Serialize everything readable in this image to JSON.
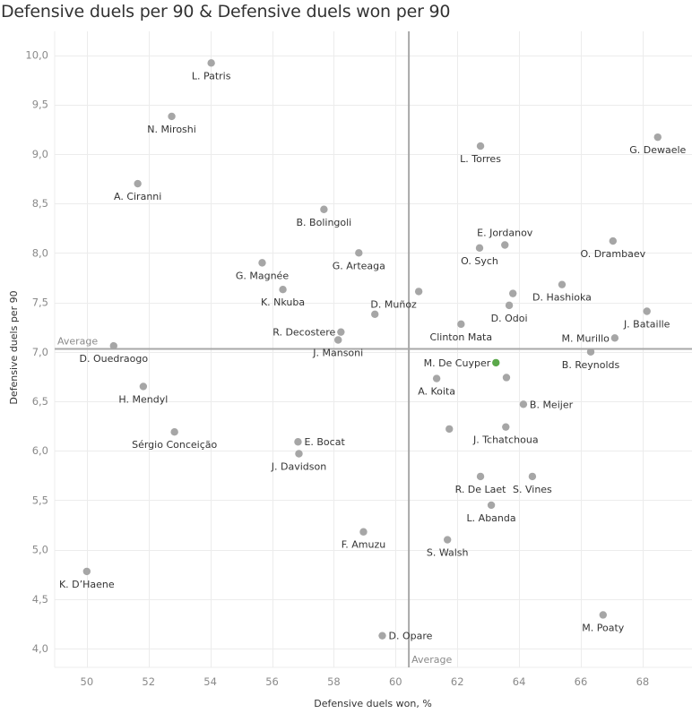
{
  "chart_data": {
    "type": "scatter",
    "title": "Defensive duels per 90 & Defensive duels won per 90",
    "xlabel": "Defensive duels won, %",
    "ylabel": "Defensive duels per 90",
    "xlim": [
      48.96,
      69.6
    ],
    "ylim": [
      3.81,
      10.24
    ],
    "xticks": [
      50,
      52,
      54,
      56,
      58,
      60,
      62,
      64,
      66,
      68
    ],
    "xtick_labels": [
      "50",
      "52",
      "54",
      "56",
      "58",
      "60",
      "62",
      "64",
      "66",
      "68"
    ],
    "yticks": [
      4.0,
      4.5,
      5.0,
      5.5,
      6.0,
      6.5,
      7.0,
      7.5,
      8.0,
      8.5,
      9.0,
      9.5,
      10.0
    ],
    "ytick_labels": [
      "4,0",
      "4,5",
      "5,0",
      "5,5",
      "6,0",
      "6,5",
      "7,0",
      "7,5",
      "8,0",
      "8,5",
      "9,0",
      "9,5",
      "10,0"
    ],
    "grid": true,
    "reference_lines": {
      "x_average": 60.43,
      "y_average": 7.03,
      "x_average_label": "Average",
      "y_average_label": "Average"
    },
    "colors": {
      "default_point": "#a6a6a6",
      "highlight_point": "#5ba84a",
      "reference_line": "#a8a8a8",
      "grid": "#ececec"
    },
    "points": [
      {
        "name": "L. Patris",
        "x": 54.03,
        "y": 9.92,
        "label_pos": "below"
      },
      {
        "name": "N. Miroshi",
        "x": 52.75,
        "y": 9.38,
        "label_pos": "below"
      },
      {
        "name": "A. Ciranni",
        "x": 51.65,
        "y": 8.7,
        "label_pos": "below"
      },
      {
        "name": "B. Bolingoli",
        "x": 57.68,
        "y": 8.44,
        "label_pos": "below"
      },
      {
        "name": "G. Arteaga",
        "x": 58.81,
        "y": 8.0,
        "label_pos": "below"
      },
      {
        "name": "G. Magnée",
        "x": 55.68,
        "y": 7.9,
        "label_pos": "below"
      },
      {
        "name": "K. Nkuba",
        "x": 56.35,
        "y": 7.63,
        "label_pos": "below"
      },
      {
        "name": "",
        "x": 59.33,
        "y": 7.38,
        "label_pos": "none"
      },
      {
        "name": "D. Muñoz",
        "x": 60.75,
        "y": 7.61,
        "label_pos": "below-left"
      },
      {
        "name": "R. Decostere",
        "x": 58.23,
        "y": 7.2,
        "label_pos": "left"
      },
      {
        "name": "J. Mansoni",
        "x": 58.14,
        "y": 7.12,
        "label_pos": "below"
      },
      {
        "name": "D. Ouedraogo",
        "x": 50.87,
        "y": 7.06,
        "label_pos": "below"
      },
      {
        "name": "H. Mendyl",
        "x": 51.83,
        "y": 6.65,
        "label_pos": "below"
      },
      {
        "name": "Sérgio Conceição",
        "x": 52.84,
        "y": 6.19,
        "label_pos": "below"
      },
      {
        "name": "E. Bocat",
        "x": 56.84,
        "y": 6.09,
        "label_pos": "right"
      },
      {
        "name": "J. Davidson",
        "x": 56.87,
        "y": 5.97,
        "label_pos": "below"
      },
      {
        "name": "F. Amuzu",
        "x": 58.96,
        "y": 5.18,
        "label_pos": "below"
      },
      {
        "name": "K. D’Haene",
        "x": 50.0,
        "y": 4.78,
        "label_pos": "below"
      },
      {
        "name": "D. Opare",
        "x": 59.57,
        "y": 4.13,
        "label_pos": "right"
      },
      {
        "name": "L. Torres",
        "x": 62.75,
        "y": 9.08,
        "label_pos": "below"
      },
      {
        "name": "G. Dewaele",
        "x": 68.49,
        "y": 9.17,
        "label_pos": "below"
      },
      {
        "name": "E. Jordanov",
        "x": 63.54,
        "y": 8.08,
        "label_pos": "above"
      },
      {
        "name": "O. Sych",
        "x": 62.72,
        "y": 8.05,
        "label_pos": "below"
      },
      {
        "name": "O. Drambaev",
        "x": 67.04,
        "y": 8.12,
        "label_pos": "below"
      },
      {
        "name": "D. Hashioka",
        "x": 65.39,
        "y": 7.68,
        "label_pos": "below"
      },
      {
        "name": "",
        "x": 63.8,
        "y": 7.59,
        "label_pos": "none"
      },
      {
        "name": "D. Odoi",
        "x": 63.68,
        "y": 7.47,
        "label_pos": "below"
      },
      {
        "name": "Clinton Mata",
        "x": 62.12,
        "y": 7.28,
        "label_pos": "below"
      },
      {
        "name": "J. Bataille",
        "x": 68.14,
        "y": 7.41,
        "label_pos": "below"
      },
      {
        "name": "M. Murillo",
        "x": 67.1,
        "y": 7.14,
        "label_pos": "left"
      },
      {
        "name": "B. Reynolds",
        "x": 66.32,
        "y": 7.0,
        "label_pos": "below"
      },
      {
        "name": "M. De Cuyper",
        "x": 63.25,
        "y": 6.89,
        "label_pos": "left",
        "highlight": true
      },
      {
        "name": "",
        "x": 63.59,
        "y": 6.74,
        "label_pos": "none"
      },
      {
        "name": "A. Koita",
        "x": 61.33,
        "y": 6.73,
        "label_pos": "below"
      },
      {
        "name": "B. Meijer",
        "x": 64.14,
        "y": 6.47,
        "label_pos": "right"
      },
      {
        "name": "",
        "x": 61.74,
        "y": 6.22,
        "label_pos": "none"
      },
      {
        "name": "J. Tchatchoua",
        "x": 63.57,
        "y": 6.24,
        "label_pos": "below"
      },
      {
        "name": "R. De Laet",
        "x": 62.75,
        "y": 5.74,
        "label_pos": "below"
      },
      {
        "name": "S. Vines",
        "x": 64.43,
        "y": 5.74,
        "label_pos": "below"
      },
      {
        "name": "L. Abanda",
        "x": 63.1,
        "y": 5.45,
        "label_pos": "below"
      },
      {
        "name": "S. Walsh",
        "x": 61.68,
        "y": 5.1,
        "label_pos": "below"
      },
      {
        "name": "M. Poaty",
        "x": 66.72,
        "y": 4.34,
        "label_pos": "below"
      }
    ]
  }
}
